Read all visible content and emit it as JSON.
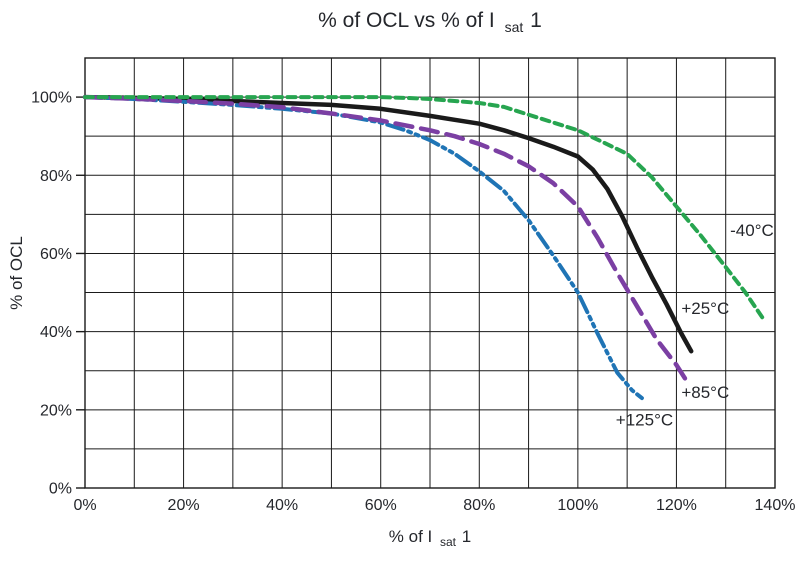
{
  "page": {
    "background": "#ffffff",
    "text_color": "#25272c"
  },
  "title": {
    "prefix": "% of OCL vs % of I",
    "sub": "sat",
    "suffix": "1"
  },
  "x_axis_title": {
    "prefix": "% of I",
    "sub": "sat",
    "suffix": "1"
  },
  "y_axis_title": "% of OCL",
  "chart_data": {
    "type": "line",
    "title": "% of OCL vs % of Isat1",
    "xlabel": "% of Isat1",
    "ylabel": "% of OCL",
    "xlim": [
      0,
      140
    ],
    "ylim": [
      0,
      110
    ],
    "grid": true,
    "grid_step_x": 10,
    "grid_step_y": 10,
    "x_tick_label_step": 20,
    "y_tick_label_step": 20,
    "y_tick_label_max": 100,
    "x_tick_labels": [
      "0%",
      "20%",
      "40%",
      "60%",
      "80%",
      "100%",
      "120%",
      "140%"
    ],
    "y_tick_labels": [
      "0%",
      "20%",
      "40%",
      "60%",
      "80%",
      "100%"
    ],
    "grid_color": "#1a1a1a",
    "legend_position": "curve-end-labels",
    "series": [
      {
        "name": "+25°C",
        "style": "solid",
        "color": "#1a1a1a",
        "dash": "",
        "width": 4.5,
        "points": [
          [
            0,
            100
          ],
          [
            10,
            99.8
          ],
          [
            20,
            99.5
          ],
          [
            30,
            99
          ],
          [
            40,
            98.5
          ],
          [
            50,
            98
          ],
          [
            60,
            97
          ],
          [
            70,
            95.2
          ],
          [
            75,
            94.2
          ],
          [
            80,
            93.2
          ],
          [
            85,
            91.5
          ],
          [
            90,
            89.5
          ],
          [
            95,
            87.3
          ],
          [
            100,
            84.8
          ],
          [
            103,
            81.5
          ],
          [
            106,
            76.5
          ],
          [
            109,
            69.5
          ],
          [
            112,
            61.5
          ],
          [
            115,
            54
          ],
          [
            118,
            47
          ],
          [
            121,
            39.5
          ],
          [
            123,
            35
          ]
        ],
        "label": {
          "text": "+25°C",
          "x": 121,
          "y": 46
        }
      },
      {
        "name": "+125°C",
        "style": "dash-dot-dot",
        "color": "#1f74b5",
        "dash": "17 5 3 5 3 5",
        "width": 4,
        "points": [
          [
            0,
            100
          ],
          [
            10,
            99.5
          ],
          [
            20,
            98.8
          ],
          [
            30,
            98
          ],
          [
            40,
            97
          ],
          [
            50,
            95.8
          ],
          [
            60,
            93.5
          ],
          [
            65,
            91.5
          ],
          [
            70,
            89
          ],
          [
            75,
            85.5
          ],
          [
            80,
            81
          ],
          [
            85,
            76
          ],
          [
            90,
            68.5
          ],
          [
            95,
            59.5
          ],
          [
            100,
            50
          ],
          [
            104,
            39.5
          ],
          [
            108,
            29.5
          ],
          [
            111,
            25
          ],
          [
            113,
            23
          ]
        ],
        "label": {
          "text": "+125°C",
          "x": 107.7,
          "y": 17.5
        }
      },
      {
        "name": "+85°C",
        "style": "long-dash",
        "color": "#7b3fa3",
        "dash": "17 9",
        "width": 4.5,
        "points": [
          [
            0,
            100
          ],
          [
            10,
            99.6
          ],
          [
            20,
            99
          ],
          [
            30,
            98.3
          ],
          [
            40,
            97.4
          ],
          [
            50,
            95.8
          ],
          [
            60,
            94
          ],
          [
            70,
            91.5
          ],
          [
            75,
            90
          ],
          [
            80,
            88
          ],
          [
            85,
            85.5
          ],
          [
            90,
            82.3
          ],
          [
            95,
            78
          ],
          [
            100,
            72
          ],
          [
            104,
            64
          ],
          [
            108,
            55
          ],
          [
            112,
            46.5
          ],
          [
            116,
            38
          ],
          [
            120,
            31.5
          ],
          [
            122,
            27.5
          ]
        ],
        "label": {
          "text": "+85°C",
          "x": 121,
          "y": 24.5
        }
      },
      {
        "name": "-40°C",
        "style": "short-dash",
        "color": "#27a550",
        "dash": "8 5.5",
        "width": 4,
        "points": [
          [
            0,
            100
          ],
          [
            10,
            100
          ],
          [
            20,
            100
          ],
          [
            30,
            100
          ],
          [
            40,
            100
          ],
          [
            50,
            100
          ],
          [
            60,
            100
          ],
          [
            65,
            99.8
          ],
          [
            70,
            99.5
          ],
          [
            75,
            99
          ],
          [
            80,
            98.5
          ],
          [
            85,
            97.5
          ],
          [
            90,
            95.5
          ],
          [
            95,
            93.5
          ],
          [
            100,
            91.5
          ],
          [
            105,
            88.5
          ],
          [
            110,
            85.5
          ],
          [
            115,
            79.5
          ],
          [
            120,
            72
          ],
          [
            125,
            64.5
          ],
          [
            130,
            56.5
          ],
          [
            134,
            50
          ],
          [
            137.5,
            43.5
          ]
        ],
        "label": {
          "text": "-40°C",
          "x": 130.9,
          "y": 66
        }
      }
    ]
  }
}
